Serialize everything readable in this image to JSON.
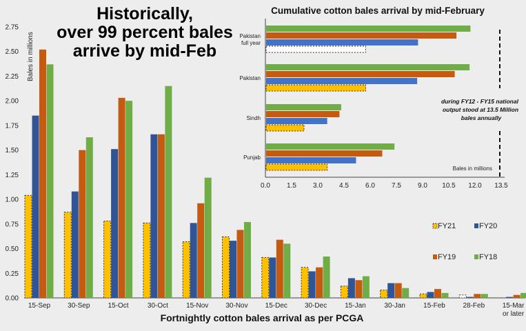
{
  "chart_data": [
    {
      "type": "bar",
      "title": "Historically, over 99 percent bales arrive by mid-Feb",
      "title_lines": [
        "Historically,",
        "over 99 percent bales",
        "arrive by mid-Feb"
      ],
      "xlabel": "Fortnightly cotton bales arrival as per PCGA",
      "ylabel": "Bales in millions",
      "ylim": [
        0,
        2.75
      ],
      "yticks": [
        "0.00",
        "0.25",
        "0.50",
        "0.75",
        "1.00",
        "1.25",
        "1.50",
        "1.75",
        "2.00",
        "2.25",
        "2.50",
        "2.75"
      ],
      "grid": false,
      "legend": "right",
      "categories": [
        "15-Sep",
        "30-Sep",
        "15-Oct",
        "30-Oct",
        "15-Nov",
        "30-Nov",
        "15-Dec",
        "30-Dec",
        "15-Jan",
        "30-Jan",
        "15-Feb",
        "28-Feb",
        "15-Mar or later"
      ],
      "series": [
        {
          "name": "FY21",
          "color": "#FFC000",
          "values": [
            1.04,
            0.87,
            0.78,
            0.76,
            0.57,
            0.62,
            0.41,
            0.31,
            0.12,
            0.08,
            0.04,
            0.03,
            0
          ]
        },
        {
          "name": "FY20",
          "color": "#2F5597",
          "values": [
            1.85,
            1.08,
            1.51,
            1.66,
            0.76,
            0.58,
            0.41,
            0.27,
            0.2,
            0.15,
            0.06,
            0.01,
            0.01
          ]
        },
        {
          "name": "FY19",
          "color": "#C55A11",
          "values": [
            2.52,
            1.5,
            2.03,
            1.66,
            0.96,
            0.69,
            0.59,
            0.31,
            0.18,
            0.15,
            0.09,
            0.04,
            0.03
          ]
        },
        {
          "name": "FY18",
          "color": "#70AD47",
          "values": [
            2.37,
            1.63,
            2.0,
            2.15,
            1.22,
            0.77,
            0.55,
            0.42,
            0.22,
            0.1,
            0.05,
            0.04,
            0.05
          ]
        }
      ]
    },
    {
      "type": "bar",
      "orientation": "horizontal",
      "title": "Cumulative cotton bales arrival by mid-February",
      "xlabel": "Bales in millions",
      "xlim": [
        0,
        13.5
      ],
      "xticks": [
        "0.0",
        "1.5",
        "3.0",
        "4.5",
        "6.0",
        "7.5",
        "9.0",
        "10.5",
        "12.0",
        "13.5"
      ],
      "categories": [
        [
          "Pakistan",
          "full year"
        ],
        [
          "Pakistan"
        ],
        [
          "Sindh"
        ],
        [
          "Punjab"
        ]
      ],
      "series": [
        {
          "name": "FY18",
          "color": "#70AD47",
          "values": [
            11.7,
            11.65,
            4.3,
            7.35
          ]
        },
        {
          "name": "FY19",
          "color": "#C55A11",
          "values": [
            10.9,
            10.8,
            4.2,
            6.65
          ]
        },
        {
          "name": "FY20",
          "color": "#4472C4",
          "values": [
            8.7,
            8.65,
            3.5,
            5.15
          ]
        },
        {
          "name": "FY21",
          "color": "#FFC000",
          "values": [
            5.7,
            5.7,
            2.17,
            3.5
          ]
        }
      ],
      "reference_line": 13.5,
      "annotation_lines": [
        "during FY12 - FY15 national",
        "output stood at 13.5 Million",
        "bales annually"
      ]
    }
  ]
}
